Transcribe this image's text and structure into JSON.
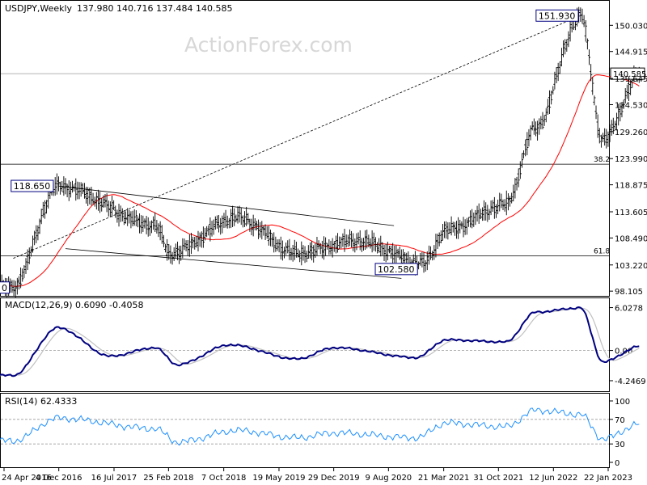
{
  "chart_data": [
    {
      "type": "ohlc",
      "panel": "price",
      "title": "USDJPY,Weekly",
      "ohlc_header": "137.980 140.716 137.484 140.585",
      "watermark": "ActionForex.com",
      "ylim": [
        97.5,
        154.5
      ],
      "y_ticks": [
        "150.030",
        "144.915",
        "139.645",
        "134.530",
        "129.260",
        "123.990",
        "118.875",
        "113.605",
        "108.490",
        "103.220",
        "98.105"
      ],
      "current_price": "140.585",
      "x_ticks": [
        "24 Apr 2016",
        "4 Dec 2016",
        "16 Jul 2017",
        "25 Feb 2018",
        "7 Oct 2018",
        "19 May 2019",
        "29 Dec 2019",
        "9 Aug 2020",
        "21 Mar 2021",
        "31 Oct 2021",
        "12 Jun 2022",
        "22 Jan 2023"
      ],
      "annotations": {
        "high_label": "151.930",
        "swing_high_label": "118.650",
        "low_label": "102.580",
        "level_left_edge_label": "0",
        "fib_382_label": "38.2",
        "fib_618_label": "61.8"
      },
      "levels": [
        {
          "name": "current",
          "value": 140.585
        },
        {
          "name": "fib-38.2",
          "value": 122.9
        },
        {
          "name": "fib-61.8",
          "value": 105.0
        }
      ],
      "trendlines": [
        {
          "name": "upper-channel",
          "points": [
            [
              "Dec 2016",
              118.65
            ],
            [
              "Sep 2020",
              110.9
            ]
          ]
        },
        {
          "name": "lower-channel",
          "points": [
            [
              "Jan 2017",
              106.4
            ],
            [
              "Oct 2020",
              100.6
            ]
          ]
        },
        {
          "name": "dotted-projection",
          "points": [
            [
              "Jun 2016",
              104.5
            ],
            [
              "Oct 2022",
              151.93
            ]
          ]
        }
      ],
      "key_points": [
        {
          "date": "Jun 2016",
          "close": 99.0
        },
        {
          "date": "Dec 2016",
          "close": 118.65
        },
        {
          "date": "Jan 2018",
          "close": 111.0
        },
        {
          "date": "Mar 2018",
          "close": 105.5
        },
        {
          "date": "Dec 2018",
          "close": 112.5
        },
        {
          "date": "Aug 2019",
          "close": 105.5
        },
        {
          "date": "Apr 2020",
          "close": 108.0
        },
        {
          "date": "Jan 2021",
          "close": 103.5
        },
        {
          "date": "Apr 2021",
          "close": 110.0
        },
        {
          "date": "Dec 2021",
          "close": 115.0
        },
        {
          "date": "Apr 2022",
          "close": 130.0
        },
        {
          "date": "Oct 2022",
          "close": 151.93
        },
        {
          "date": "Jan 2023",
          "close": 127.5
        },
        {
          "date": "Jun 2023",
          "close": 140.585
        }
      ],
      "series": [
        {
          "name": "USDJPY",
          "color": "#000000"
        },
        {
          "name": "moving-average",
          "color": "#ff0000"
        }
      ]
    },
    {
      "type": "line",
      "panel": "macd",
      "title": "MACD(12,26,9) 0.6090 -0.4058",
      "y_ticks": [
        "6.0278",
        "0.00",
        "-4.2469"
      ],
      "ylim": [
        -5.5,
        7
      ],
      "series": [
        {
          "name": "MACD",
          "color": "#000080"
        },
        {
          "name": "signal",
          "color": "#c0c0c0"
        }
      ],
      "key_points": [
        {
          "date": "Jun 2016",
          "value": -3.5
        },
        {
          "date": "Dec 2016",
          "value": 3.2
        },
        {
          "date": "Jul 2017",
          "value": -0.8
        },
        {
          "date": "Jan 2018",
          "value": 0.4
        },
        {
          "date": "Apr 2018",
          "value": -2.0
        },
        {
          "date": "Nov 2018",
          "value": 0.8
        },
        {
          "date": "Aug 2019",
          "value": -1.2
        },
        {
          "date": "Jan 2020",
          "value": 0.4
        },
        {
          "date": "Dec 2020",
          "value": -1.0
        },
        {
          "date": "Apr 2021",
          "value": 1.5
        },
        {
          "date": "Dec 2021",
          "value": 1.2
        },
        {
          "date": "Apr 2022",
          "value": 5.4
        },
        {
          "date": "Oct 2022",
          "value": 6.0
        },
        {
          "date": "Jan 2023",
          "value": -1.6
        },
        {
          "date": "Jun 2023",
          "value": 0.609
        }
      ]
    },
    {
      "type": "line",
      "panel": "rsi",
      "title": "RSI(14) 62.4333",
      "y_ticks": [
        "100",
        "70",
        "30",
        "0"
      ],
      "ylim": [
        0,
        100
      ],
      "reference_lines": [
        70,
        30
      ],
      "series": [
        {
          "name": "RSI",
          "color": "#1e90ff"
        }
      ],
      "key_points": [
        {
          "date": "Jun 2016",
          "value": 35
        },
        {
          "date": "Dec 2016",
          "value": 72
        },
        {
          "date": "Jan 2018",
          "value": 55
        },
        {
          "date": "Apr 2018",
          "value": 33
        },
        {
          "date": "Dec 2018",
          "value": 52
        },
        {
          "date": "Aug 2019",
          "value": 40
        },
        {
          "date": "Jan 2020",
          "value": 48
        },
        {
          "date": "Dec 2020",
          "value": 40
        },
        {
          "date": "Apr 2021",
          "value": 64
        },
        {
          "date": "Dec 2021",
          "value": 58
        },
        {
          "date": "Apr 2022",
          "value": 85
        },
        {
          "date": "Oct 2022",
          "value": 78
        },
        {
          "date": "Jan 2023",
          "value": 38
        },
        {
          "date": "Jun 2023",
          "value": 62.4333
        }
      ]
    }
  ]
}
